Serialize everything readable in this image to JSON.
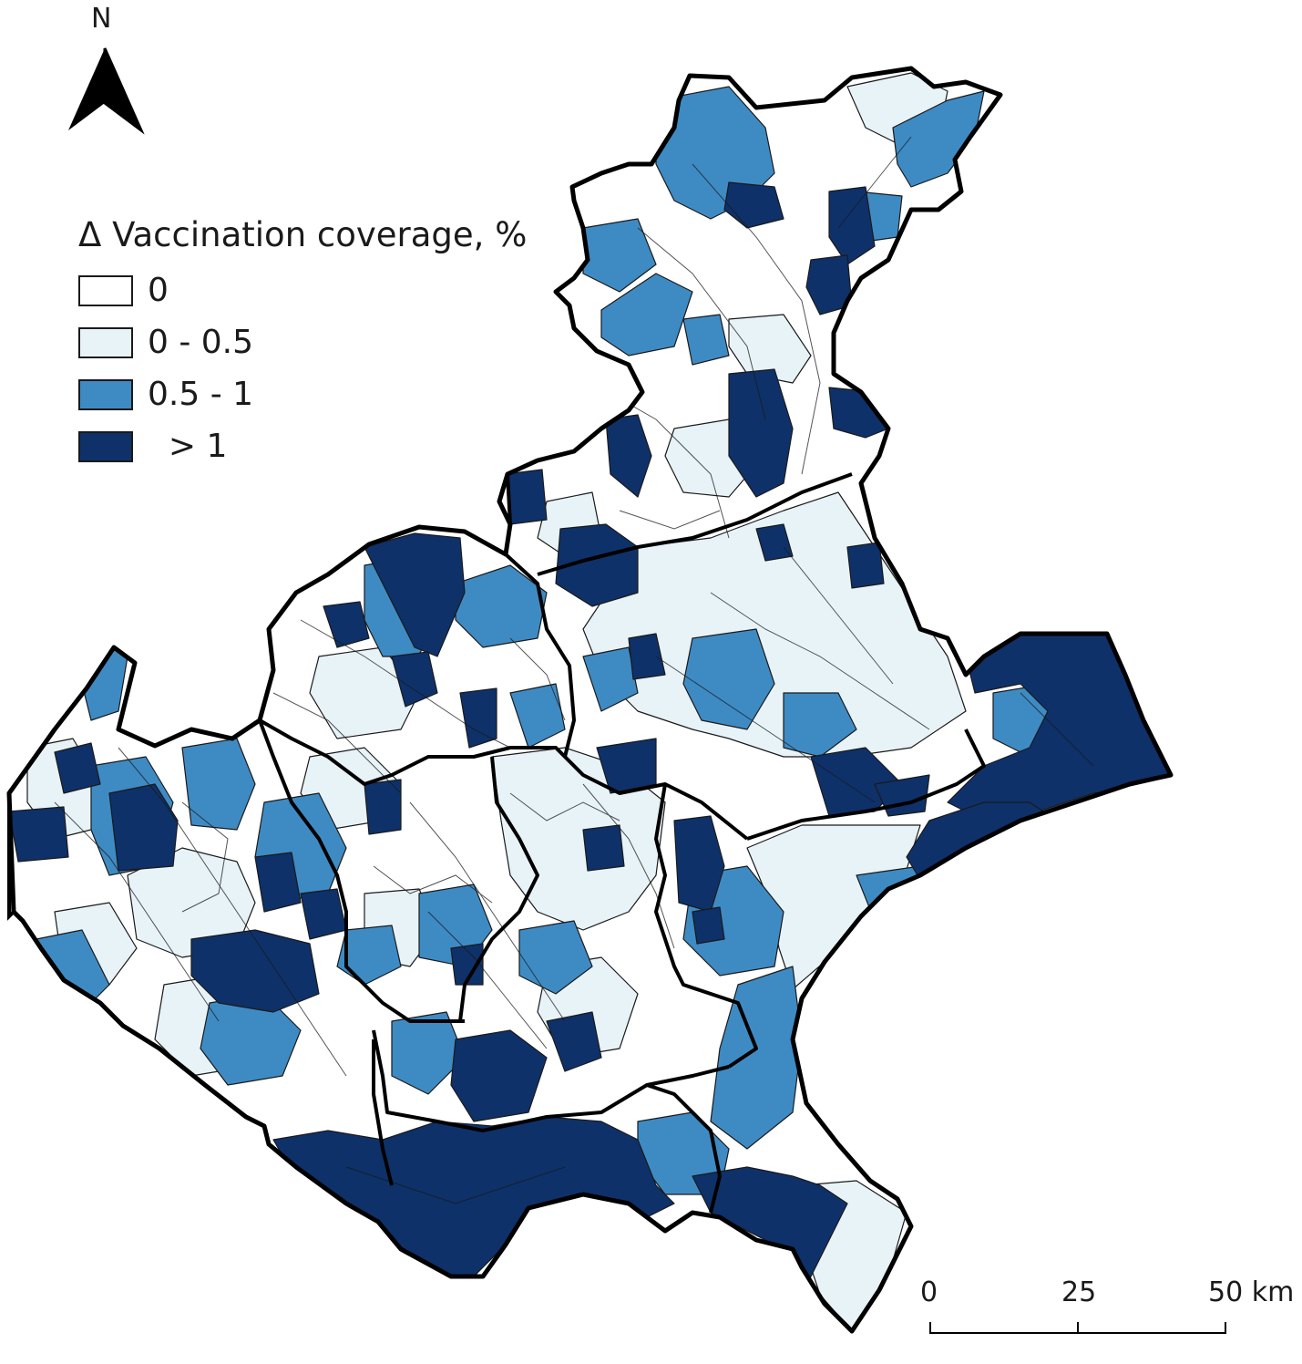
{
  "north": {
    "label": "N"
  },
  "legend": {
    "title": "Δ Vaccination coverage, %",
    "items": [
      {
        "label": "0",
        "color": "#ffffff"
      },
      {
        "label": "0 - 0.5",
        "color": "#e8f3f8"
      },
      {
        "label": "0.5 - 1",
        "color": "#3e8bc4"
      },
      {
        "label": "  > 1",
        "color": "#0e3169"
      }
    ]
  },
  "scalebar": {
    "label_0": "0",
    "label_25": "25",
    "label_50": "50 km"
  },
  "colors": {
    "outline": "#1a1a1a",
    "background": "#ffffff"
  }
}
